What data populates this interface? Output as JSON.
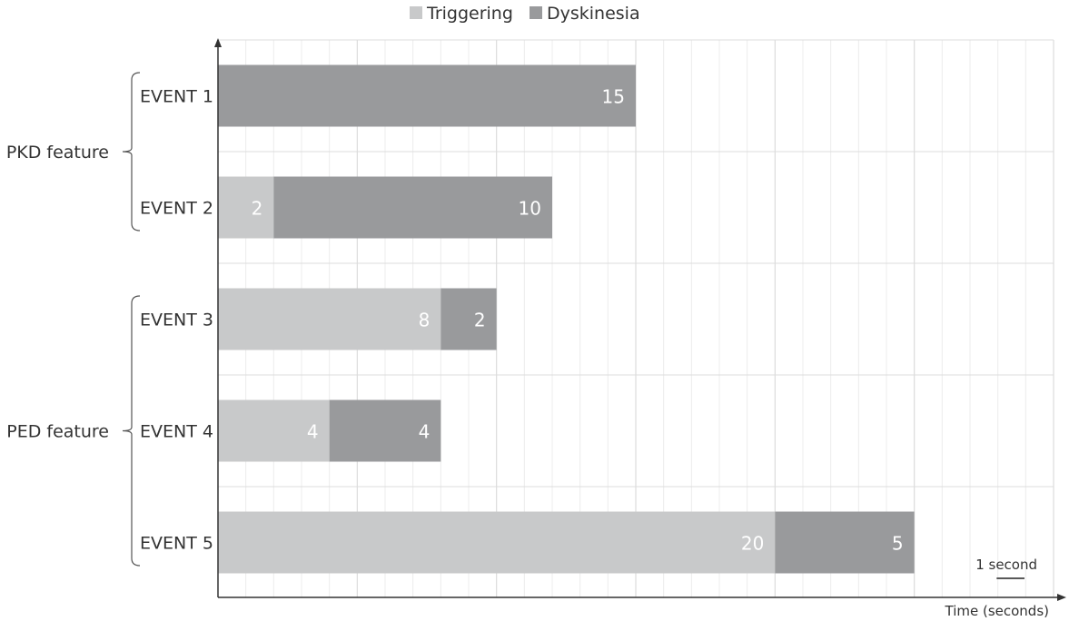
{
  "chart_data": {
    "type": "bar",
    "orientation": "horizontal",
    "stacked": true,
    "categories": [
      "EVENT 1",
      "EVENT 2",
      "EVENT 3",
      "EVENT 4",
      "EVENT 5"
    ],
    "series": [
      {
        "name": "Triggering",
        "values": [
          0,
          2,
          8,
          4,
          20
        ],
        "color": "#c8c9ca"
      },
      {
        "name": "Dyskinesia",
        "values": [
          15,
          10,
          2,
          4,
          5
        ],
        "color": "#999a9c"
      }
    ],
    "groups": [
      {
        "label": "PKD feature",
        "categories": [
          "EVENT 1",
          "EVENT 2"
        ]
      },
      {
        "label": "PED feature",
        "categories": [
          "EVENT 3",
          "EVENT 4",
          "EVENT 5"
        ]
      }
    ],
    "xlabel": "Time (seconds)",
    "xlim": [
      0,
      30
    ],
    "scale_bar_label": "1 second",
    "grid": true,
    "legend": "top"
  }
}
